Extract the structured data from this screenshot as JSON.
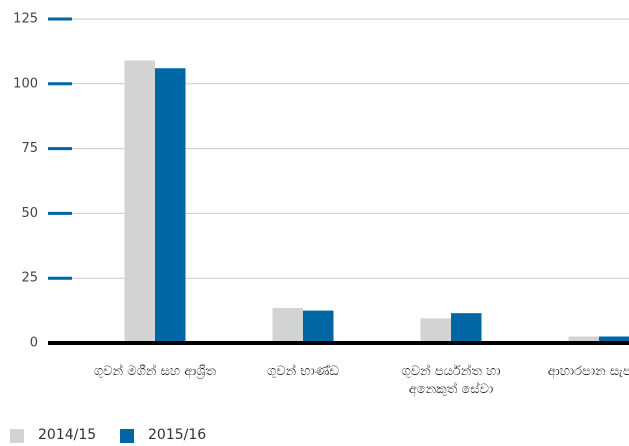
{
  "chart_data": {
    "type": "bar",
    "categories": [
      "ගුවන් මගීන් සහ ආශ්‍රිත",
      "ගුවන් භාණ්ඩ",
      "ගුවන් පර්යන්ත හා අනෙකුත් සේවා",
      "ආහාරපාන සැපයුම"
    ],
    "series": [
      {
        "name": "2014/15",
        "color": "#d3d3d3",
        "values": [
          109,
          13.5,
          9.5,
          2.5
        ]
      },
      {
        "name": "2015/16",
        "color": "#0066a4",
        "values": [
          106,
          12.5,
          11.5,
          2.5
        ]
      }
    ],
    "ylim": [
      0,
      125
    ],
    "yticks": [
      0,
      25,
      50,
      75,
      100,
      125
    ],
    "grid": true
  }
}
